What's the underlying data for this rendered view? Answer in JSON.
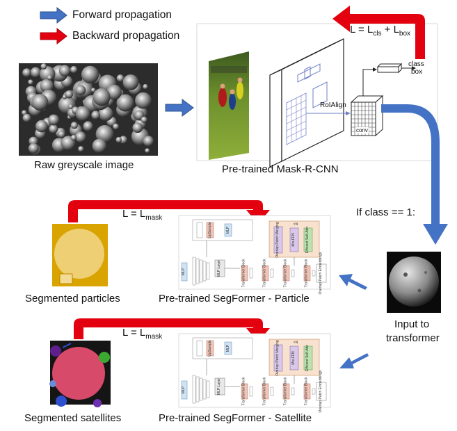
{
  "legend": {
    "forward_label": "Forward propagation",
    "backward_label": "Backward propagation",
    "forward_color": "#4472c4",
    "backward_color": "#e3000f"
  },
  "maskrcnn": {
    "caption": "Pre-trained Mask-R-CNN",
    "loss_prefix": "L = L",
    "loss_cls_sub": "cls",
    "loss_plus": " + L",
    "loss_box_sub": "box",
    "roialign": "RoIAlign",
    "conv": "conv",
    "class_label": "class",
    "box_label": "box"
  },
  "raw_image_caption": "Raw greyscale image",
  "condition": "If class == 1:",
  "input_caption_line1": "Input to",
  "input_caption_line2": "transformer",
  "particle": {
    "caption": "Segmented particles",
    "model_caption": "Pre-trained SegFormer - Particle",
    "loss_prefix": "L = L",
    "loss_sub": "mask"
  },
  "satellite": {
    "caption": "Segmented satellites",
    "model_caption": "Pre-trained SegFormer - Satellite",
    "loss_prefix": "L = L",
    "loss_sub": "mask"
  },
  "segformer_blocks": {
    "upsample": "UpSample",
    "mlp": "MLP",
    "mlp_layer": "MLP Layer",
    "overlap_merging": "Overlap Patch Merging",
    "mix_ffn": "Mix-FFN",
    "efficient_attn": "Efficient Self-Attn",
    "overlap_embed": "Overlap Patch Embeddings",
    "transformer_block": "Transformer Block",
    "repeat": "×N"
  }
}
